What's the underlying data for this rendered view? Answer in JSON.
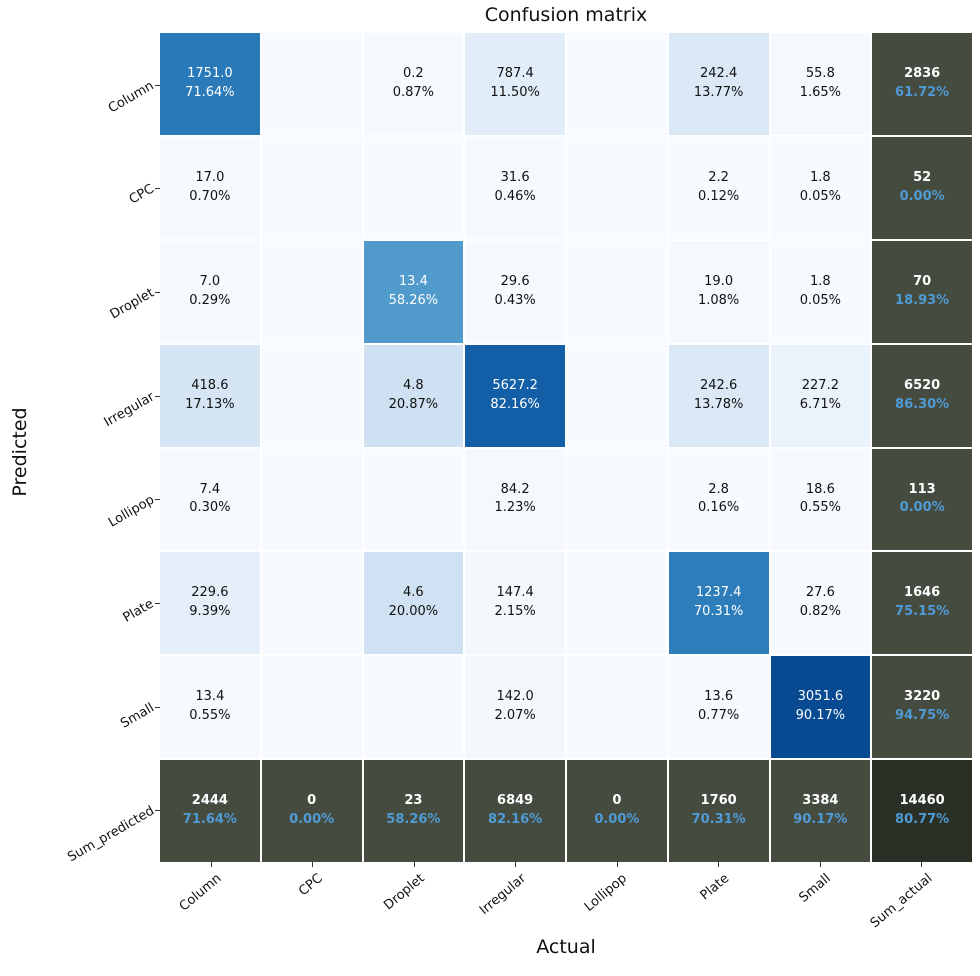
{
  "title": "Confusion matrix",
  "axes": {
    "xlabel": "Actual",
    "ylabel": "Predicted"
  },
  "colors": {
    "empty": "#f7fbff",
    "sum_bg": "#454b3f",
    "corner_bg": "#2b3026",
    "sum_value": "#ffffff",
    "sum_percent": "#4f9bd5",
    "cell_text": "#111111",
    "cell_text_light": "#ffffff"
  },
  "chart_data": {
    "type": "heatmap",
    "title": "Confusion matrix",
    "xlabel": "Actual",
    "ylabel": "Predicted",
    "x_categories": [
      "Column",
      "CPC",
      "Droplet",
      "Irregular",
      "Lollipop",
      "Plate",
      "Small",
      "Sum_actual"
    ],
    "y_categories": [
      "Column",
      "CPC",
      "Droplet",
      "Irregular",
      "Lollipop",
      "Plate",
      "Small",
      "Sum_predicted"
    ],
    "rows": [
      {
        "label": "Column",
        "cells": [
          {
            "v": "1751.0",
            "p": "71.64%",
            "bg": "#2a7ab9",
            "light": true
          },
          {},
          {
            "v": "0.2",
            "p": "0.87%",
            "bg": "#f5fafe"
          },
          {
            "v": "787.4",
            "p": "11.50%",
            "bg": "#e1edf8"
          },
          {},
          {
            "v": "242.4",
            "p": "13.77%",
            "bg": "#dbe9f6"
          },
          {
            "v": "55.8",
            "p": "1.65%",
            "bg": "#f4f9fe"
          },
          {
            "v": "2836",
            "p": "61.72%",
            "sum": true
          }
        ]
      },
      {
        "label": "CPC",
        "cells": [
          {
            "v": "17.0",
            "p": "0.70%",
            "bg": "#f6fafe"
          },
          {},
          {},
          {
            "v": "31.6",
            "p": "0.46%",
            "bg": "#f6fafe"
          },
          {},
          {
            "v": "2.2",
            "p": "0.12%",
            "bg": "#f7fbff"
          },
          {
            "v": "1.8",
            "p": "0.05%",
            "bg": "#f7fbff"
          },
          {
            "v": "52",
            "p": "0.00%",
            "sum": true
          }
        ]
      },
      {
        "label": "Droplet",
        "cells": [
          {
            "v": "7.0",
            "p": "0.29%",
            "bg": "#f6fafe"
          },
          {},
          {
            "v": "13.4",
            "p": "58.26%",
            "bg": "#509bcb",
            "light": true
          },
          {
            "v": "29.6",
            "p": "0.43%",
            "bg": "#f6fafe"
          },
          {},
          {
            "v": "19.0",
            "p": "1.08%",
            "bg": "#f5f9fe"
          },
          {
            "v": "1.8",
            "p": "0.05%",
            "bg": "#f7fbff"
          },
          {
            "v": "70",
            "p": "18.93%",
            "sum": true
          }
        ]
      },
      {
        "label": "Irregular",
        "cells": [
          {
            "v": "418.6",
            "p": "17.13%",
            "bg": "#d5e5f4"
          },
          {},
          {
            "v": "4.8",
            "p": "20.87%",
            "bg": "#cee0f2"
          },
          {
            "v": "5627.2",
            "p": "82.16%",
            "bg": "#135fa7",
            "light": true
          },
          {},
          {
            "v": "242.6",
            "p": "13.78%",
            "bg": "#dbe9f6"
          },
          {
            "v": "227.2",
            "p": "6.71%",
            "bg": "#eaf2fb"
          },
          {
            "v": "6520",
            "p": "86.30%",
            "sum": true
          }
        ]
      },
      {
        "label": "Lollipop",
        "cells": [
          {
            "v": "7.4",
            "p": "0.30%",
            "bg": "#f6fafe"
          },
          {},
          {},
          {
            "v": "84.2",
            "p": "1.23%",
            "bg": "#f5f9fe"
          },
          {},
          {
            "v": "2.8",
            "p": "0.16%",
            "bg": "#f7fbff"
          },
          {
            "v": "18.6",
            "p": "0.55%",
            "bg": "#f6fafe"
          },
          {
            "v": "113",
            "p": "0.00%",
            "sum": true
          }
        ]
      },
      {
        "label": "Plate",
        "cells": [
          {
            "v": "229.6",
            "p": "9.39%",
            "bg": "#e5effa"
          },
          {},
          {
            "v": "4.6",
            "p": "20.00%",
            "bg": "#cfe1f2"
          },
          {
            "v": "147.4",
            "p": "2.15%",
            "bg": "#f3f8fd"
          },
          {},
          {
            "v": "1237.4",
            "p": "70.31%",
            "bg": "#2d7dbb",
            "light": true
          },
          {
            "v": "27.6",
            "p": "0.82%",
            "bg": "#f5fafe"
          },
          {
            "v": "1646",
            "p": "75.15%",
            "sum": true
          }
        ]
      },
      {
        "label": "Small",
        "cells": [
          {
            "v": "13.4",
            "p": "0.55%",
            "bg": "#f6fafe"
          },
          {},
          {},
          {
            "v": "142.0",
            "p": "2.07%",
            "bg": "#f3f8fd"
          },
          {},
          {
            "v": "13.6",
            "p": "0.77%",
            "bg": "#f5fafe"
          },
          {
            "v": "3051.6",
            "p": "90.17%",
            "bg": "#084a91",
            "light": true
          },
          {
            "v": "3220",
            "p": "94.75%",
            "sum": true
          }
        ]
      },
      {
        "label": "Sum_predicted",
        "cells": [
          {
            "v": "2444",
            "p": "71.64%",
            "sum": true
          },
          {
            "v": "0",
            "p": "0.00%",
            "sum": true
          },
          {
            "v": "23",
            "p": "58.26%",
            "sum": true
          },
          {
            "v": "6849",
            "p": "82.16%",
            "sum": true
          },
          {
            "v": "0",
            "p": "0.00%",
            "sum": true
          },
          {
            "v": "1760",
            "p": "70.31%",
            "sum": true
          },
          {
            "v": "3384",
            "p": "90.17%",
            "sum": true
          },
          {
            "v": "14460",
            "p": "80.77%",
            "sum": true,
            "corner": true
          }
        ]
      }
    ]
  }
}
